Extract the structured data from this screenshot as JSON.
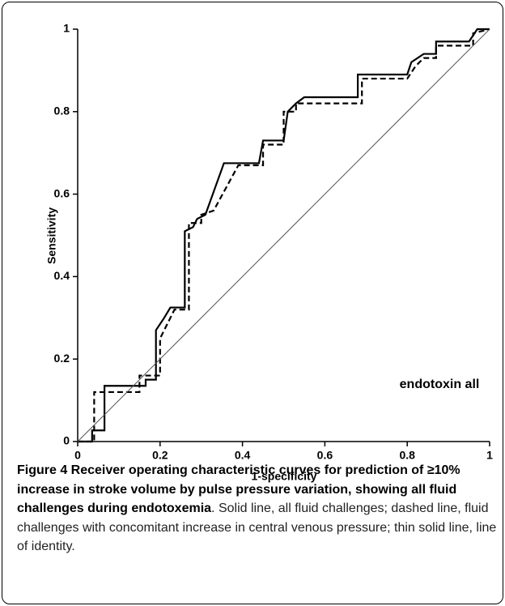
{
  "chart_data": {
    "type": "line",
    "xlabel": "1-specificity",
    "ylabel": "Sensitivity",
    "annotation": "endotoxin all",
    "xlim": [
      0,
      1
    ],
    "ylim": [
      0,
      1
    ],
    "xticks": [
      0,
      0.2,
      0.4,
      0.6,
      0.8,
      1
    ],
    "yticks": [
      0,
      0.2,
      0.4,
      0.6,
      0.8,
      1
    ],
    "series": [
      {
        "color": "#000000",
        "style": "solid",
        "width": 2.2,
        "x": [
          0,
          0.035,
          0.035,
          0.065,
          0.065,
          0.165,
          0.165,
          0.19,
          0.19,
          0.21,
          0.225,
          0.26,
          0.26,
          0.28,
          0.29,
          0.31,
          0.355,
          0.44,
          0.45,
          0.5,
          0.51,
          0.53,
          0.55,
          0.68,
          0.68,
          0.8,
          0.81,
          0.84,
          0.87,
          0.87,
          0.95,
          0.97,
          1
        ],
        "values": [
          0,
          0,
          0.027,
          0.027,
          0.135,
          0.135,
          0.15,
          0.15,
          0.27,
          0.3,
          0.325,
          0.325,
          0.51,
          0.52,
          0.54,
          0.55,
          0.675,
          0.675,
          0.73,
          0.73,
          0.8,
          0.82,
          0.835,
          0.835,
          0.89,
          0.89,
          0.92,
          0.94,
          0.94,
          0.97,
          0.97,
          1,
          1
        ]
      },
      {
        "color": "#000000",
        "style": "dashed",
        "width": 2.2,
        "x": [
          0,
          0.04,
          0.04,
          0.15,
          0.15,
          0.2,
          0.2,
          0.22,
          0.235,
          0.27,
          0.27,
          0.3,
          0.3,
          0.33,
          0.39,
          0.45,
          0.45,
          0.5,
          0.5,
          0.53,
          0.53,
          0.69,
          0.69,
          0.8,
          0.82,
          0.84,
          0.87,
          0.87,
          0.96,
          0.96,
          1
        ],
        "values": [
          0,
          0,
          0.12,
          0.12,
          0.16,
          0.16,
          0.25,
          0.29,
          0.32,
          0.32,
          0.53,
          0.53,
          0.55,
          0.56,
          0.67,
          0.67,
          0.72,
          0.72,
          0.8,
          0.8,
          0.82,
          0.82,
          0.88,
          0.88,
          0.91,
          0.93,
          0.93,
          0.96,
          0.96,
          0.99,
          1
        ]
      },
      {
        "color": "#555555",
        "style": "solid",
        "width": 1,
        "x": [
          0,
          1
        ],
        "values": [
          0,
          1
        ]
      }
    ]
  },
  "caption": {
    "title": "Figure 4 Receiver operating characteristic curves for prediction of ≥10% increase in stroke volume by pulse pressure variation, showing all fluid challenges during endotoxemia",
    "text": ". Solid line, all fluid challenges; dashed line, fluid challenges with concomitant increase in central venous pressure; thin solid line, line of identity."
  }
}
